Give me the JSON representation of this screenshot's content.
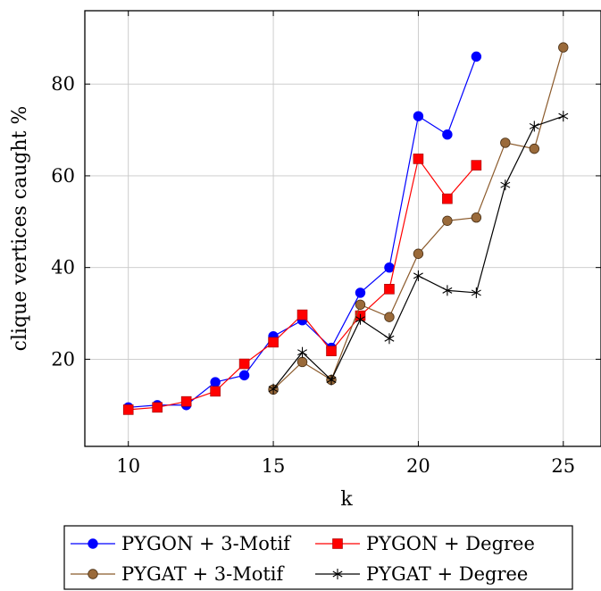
{
  "chart_data": {
    "type": "line",
    "title": "",
    "xlabel": "k",
    "ylabel": "clique vertices caught %",
    "xlim": [
      8.5,
      26.3
    ],
    "ylim": [
      1,
      96
    ],
    "xticks": [
      10,
      15,
      20,
      25
    ],
    "yticks": [
      20,
      40,
      60,
      80
    ],
    "grid": true,
    "legend_position": "bottom",
    "series": [
      {
        "name": "PYGON + 3-Motif",
        "color": "#0000ff",
        "marker": "circle",
        "x": [
          10,
          11,
          12,
          13,
          14,
          15,
          16,
          17,
          18,
          19,
          20,
          21,
          22
        ],
        "y": [
          9.5,
          10,
          10,
          15,
          16.5,
          25,
          28.5,
          22.5,
          34.5,
          40,
          73,
          69,
          86
        ]
      },
      {
        "name": "PYGON + Degree",
        "color": "#ff0000",
        "marker": "square",
        "x": [
          10,
          11,
          12,
          13,
          14,
          15,
          16,
          17,
          18,
          19,
          20,
          21,
          22
        ],
        "y": [
          9,
          9.5,
          10.8,
          13,
          19,
          23.7,
          29.7,
          21.8,
          29.5,
          35.3,
          63.7,
          55,
          62.3
        ]
      },
      {
        "name": "PYGAT + 3-Motif",
        "color": "#8b5a2b",
        "marker": "circle",
        "x": [
          15,
          16,
          17,
          18,
          19,
          20,
          21,
          22,
          23,
          24,
          25
        ],
        "y": [
          13.4,
          19.4,
          15.5,
          31.9,
          29.2,
          43,
          50.2,
          50.9,
          67.2,
          65.9,
          88
        ]
      },
      {
        "name": "PYGAT + Degree",
        "color": "#000000",
        "marker": "star",
        "x": [
          15,
          16,
          17,
          18,
          19,
          20,
          21,
          22,
          23,
          24,
          25
        ],
        "y": [
          13.5,
          21.5,
          15.5,
          28.7,
          24.5,
          38.2,
          35,
          34.5,
          58,
          70.8,
          73
        ]
      }
    ]
  }
}
